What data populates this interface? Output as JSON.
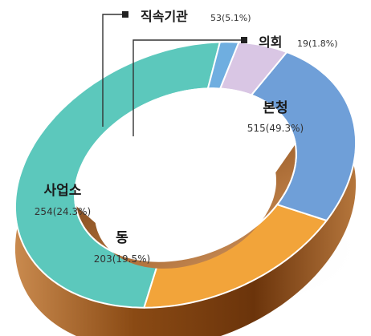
{
  "chart_data": {
    "type": "pie",
    "style": "3d-donut",
    "slices": [
      {
        "label": "본청",
        "value": 515,
        "percent": 49.3,
        "value_text": "515(49.3%)",
        "color": "#5CC8BC"
      },
      {
        "label": "동",
        "value": 203,
        "percent": 19.5,
        "value_text": "203(19.5%)",
        "color": "#F2A43A"
      },
      {
        "label": "사업소",
        "value": 254,
        "percent": 24.3,
        "value_text": "254(24.3%)",
        "color": "#6F9FD8"
      },
      {
        "label": "직속기관",
        "value": 53,
        "percent": 5.1,
        "value_text": "53(5.1%)",
        "color": "#D9C6E4"
      },
      {
        "label": "의회",
        "value": 19,
        "percent": 1.8,
        "value_text": "19(1.8%)",
        "color": "#6FAEE0"
      }
    ],
    "side_color": "#8A4A14",
    "hole_color": "#A9662A"
  }
}
